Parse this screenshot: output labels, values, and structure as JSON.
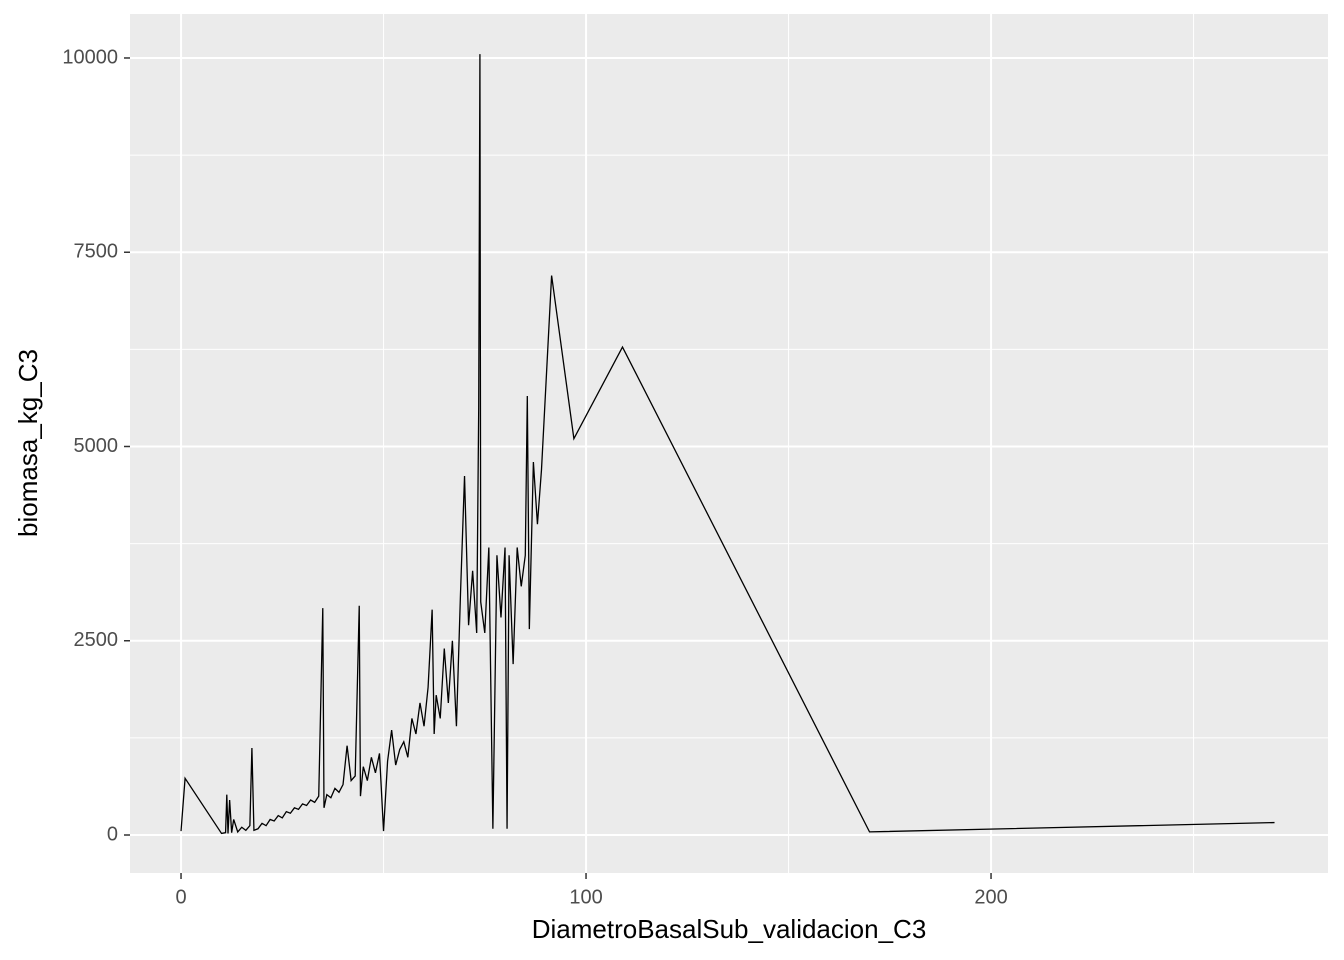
{
  "chart_data": {
    "type": "line",
    "x_label": "DiametroBasalSub_validacion_C3",
    "y_label": "biomasa_kg_C3",
    "xlim": [
      -12.6,
      283.2
    ],
    "ylim": [
      -489,
      10566
    ],
    "xticks": [
      0,
      100,
      200
    ],
    "yticks": [
      0,
      2500,
      5000,
      7500,
      10000
    ],
    "x_minor_grid": [
      50,
      150,
      250
    ],
    "y_minor_grid": [
      1250,
      3750,
      6250,
      8750
    ],
    "grid": true,
    "series": [
      {
        "color": "#000000",
        "x": [
          0,
          1,
          10,
          11,
          11.3,
          11.6,
          12,
          12.5,
          13,
          14,
          15,
          16,
          17,
          17.5,
          18,
          19,
          20,
          21,
          22,
          23,
          24,
          25,
          26,
          27,
          28,
          29,
          30,
          31,
          32,
          33,
          34,
          35,
          35.3,
          36,
          37,
          38,
          39,
          40,
          41,
          42,
          43,
          44,
          44.3,
          45,
          46,
          47,
          48,
          49,
          50,
          51,
          52,
          53,
          54,
          55,
          56,
          57,
          58,
          59,
          60,
          61,
          62,
          62.5,
          63,
          64,
          65,
          66,
          67,
          68,
          69,
          70,
          71,
          72,
          73,
          73.5,
          73.8,
          74,
          75,
          76,
          77,
          78,
          79,
          80,
          80.5,
          81,
          82,
          83,
          84,
          85,
          85.5,
          86,
          87,
          88,
          89,
          91.5,
          97,
          109,
          170,
          270
        ],
        "values": [
          50,
          730,
          20,
          30,
          520,
          20,
          450,
          30,
          200,
          40,
          100,
          60,
          120,
          1120,
          60,
          80,
          150,
          120,
          200,
          180,
          250,
          220,
          300,
          280,
          350,
          330,
          400,
          380,
          450,
          420,
          500,
          2920,
          350,
          520,
          480,
          600,
          550,
          650,
          1150,
          700,
          760,
          2950,
          500,
          880,
          700,
          1000,
          800,
          1050,
          50,
          950,
          1350,
          900,
          1100,
          1200,
          1000,
          1500,
          1300,
          1700,
          1400,
          1900,
          2900,
          1300,
          1800,
          1500,
          2400,
          1700,
          2500,
          1400,
          3100,
          4620,
          2700,
          3400,
          2600,
          5500,
          10050,
          3000,
          2600,
          3700,
          80,
          3600,
          2800,
          3700,
          80,
          3600,
          2200,
          3700,
          3200,
          3600,
          5650,
          2650,
          4800,
          4000,
          4700,
          7200,
          5100,
          6280,
          40,
          160
        ]
      }
    ]
  }
}
